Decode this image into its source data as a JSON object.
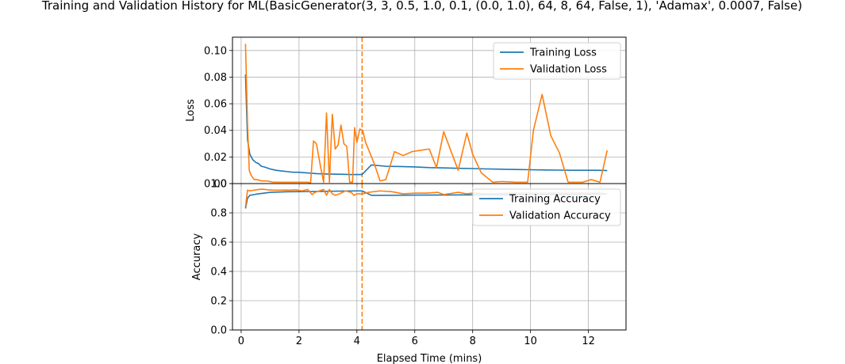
{
  "title": "Training and Validation History for ML(BasicGenerator(3, 3, 0.5, 1.0, 0.1, (0.0, 1.0), 64, 8, 64, False, 1), 'Adamax', 0.0007, False)",
  "colors": {
    "training": "#1f77b4",
    "validation": "#ff7f0e",
    "grid": "#b0b0b0"
  },
  "chart_data": [
    {
      "type": "line",
      "ylabel": "Loss",
      "xlim": [
        -0.3,
        13.3
      ],
      "ylim": [
        0,
        0.11
      ],
      "xticks": [
        0,
        2,
        4,
        6,
        8,
        10,
        12
      ],
      "yticks": [
        0,
        0.02,
        0.04,
        0.06,
        0.08,
        0.1
      ],
      "ytick_labels": [
        "0.00",
        "0.02",
        "0.04",
        "0.06",
        "0.08",
        "0.10"
      ],
      "grid": true,
      "legend": "top-right",
      "vline": {
        "x": 4.18,
        "style": "dashed",
        "color": "#ff7f0e"
      },
      "series": [
        {
          "name": "Training Loss",
          "color": "#1f77b4",
          "x": [
            0.15,
            0.22,
            0.3,
            0.4,
            0.5,
            0.6,
            0.7,
            0.8,
            1.0,
            1.2,
            1.4,
            1.6,
            1.8,
            2.0,
            2.3,
            2.6,
            3.0,
            3.4,
            3.8,
            4.18,
            4.5,
            5.0,
            5.5,
            6.0,
            6.5,
            7.0,
            7.5,
            8.0,
            8.5,
            9.0,
            9.5,
            10.0,
            10.5,
            11.0,
            11.5,
            12.0,
            12.3,
            12.65
          ],
          "y": [
            0.082,
            0.033,
            0.022,
            0.018,
            0.016,
            0.015,
            0.013,
            0.0125,
            0.011,
            0.01,
            0.0095,
            0.009,
            0.0085,
            0.0085,
            0.008,
            0.0075,
            0.0072,
            0.007,
            0.0068,
            0.0068,
            0.014,
            0.013,
            0.0128,
            0.0125,
            0.012,
            0.0118,
            0.0115,
            0.0113,
            0.011,
            0.0108,
            0.0106,
            0.0104,
            0.0102,
            0.0101,
            0.01,
            0.01,
            0.01,
            0.0098
          ]
        },
        {
          "name": "Validation Loss",
          "color": "#ff7f0e",
          "x": [
            0.15,
            0.22,
            0.28,
            0.35,
            0.45,
            0.55,
            0.7,
            0.9,
            1.1,
            1.3,
            1.5,
            1.7,
            1.9,
            2.1,
            2.3,
            2.4,
            2.5,
            2.6,
            2.75,
            2.85,
            2.95,
            3.05,
            3.15,
            3.25,
            3.35,
            3.45,
            3.55,
            3.65,
            3.75,
            3.85,
            3.92,
            4.0,
            4.1,
            4.2,
            4.3,
            4.6,
            4.8,
            5.0,
            5.3,
            5.6,
            5.9,
            6.2,
            6.5,
            6.75,
            7.0,
            7.5,
            7.8,
            8.0,
            8.3,
            8.7,
            9.0,
            9.5,
            9.9,
            10.1,
            10.4,
            10.7,
            11.0,
            11.3,
            11.6,
            11.8,
            12.1,
            12.4,
            12.65
          ],
          "y": [
            0.105,
            0.045,
            0.01,
            0.006,
            0.003,
            0.003,
            0.002,
            0.002,
            0.001,
            0.001,
            0.001,
            0.001,
            0.001,
            0.001,
            0.001,
            0.0005,
            0.032,
            0.03,
            0.012,
            0.001,
            0.053,
            0.001,
            0.052,
            0.026,
            0.029,
            0.044,
            0.03,
            0.028,
            0.001,
            0.001,
            0.042,
            0.031,
            0.041,
            0.04,
            0.031,
            0.015,
            0.002,
            0.003,
            0.024,
            0.021,
            0.024,
            0.025,
            0.026,
            0.012,
            0.039,
            0.01,
            0.038,
            0.022,
            0.008,
            0.001,
            0.0015,
            0.001,
            0.001,
            0.04,
            0.067,
            0.036,
            0.023,
            0.001,
            0.001,
            0.001,
            0.003,
            0.001,
            0.025
          ]
        }
      ]
    },
    {
      "type": "line",
      "xlabel": "Elapsed Time (mins)",
      "ylabel": "Accuracy",
      "xlim": [
        -0.3,
        13.3
      ],
      "ylim": [
        0,
        1.0
      ],
      "xticks": [
        0,
        2,
        4,
        6,
        8,
        10,
        12
      ],
      "yticks": [
        0,
        0.2,
        0.4,
        0.6,
        0.8,
        1.0
      ],
      "ytick_labels": [
        "0.0",
        "0.2",
        "0.4",
        "0.6",
        "0.8",
        "1.0"
      ],
      "grid": true,
      "legend": "top-right",
      "vline": {
        "x": 4.18,
        "style": "dashed",
        "color": "#ff7f0e"
      },
      "series": [
        {
          "name": "Training Accuracy",
          "color": "#1f77b4",
          "x": [
            0.15,
            0.22,
            0.3,
            0.45,
            0.6,
            0.8,
            1.0,
            1.3,
            1.6,
            2.0,
            2.4,
            2.8,
            3.2,
            3.6,
            4.0,
            4.18,
            4.5,
            5.0,
            6.0,
            7.0,
            8.0,
            9.0,
            10.0,
            11.0,
            12.0,
            12.65
          ],
          "y": [
            0.83,
            0.9,
            0.92,
            0.925,
            0.93,
            0.935,
            0.94,
            0.942,
            0.944,
            0.945,
            0.946,
            0.947,
            0.948,
            0.949,
            0.95,
            0.95,
            0.92,
            0.92,
            0.921,
            0.922,
            0.923,
            0.924,
            0.925,
            0.926,
            0.927,
            0.928
          ]
        },
        {
          "name": "Validation Accuracy",
          "color": "#ff7f0e",
          "x": [
            0.15,
            0.22,
            0.3,
            0.45,
            0.6,
            0.75,
            0.9,
            1.1,
            1.3,
            1.5,
            1.7,
            1.9,
            2.1,
            2.3,
            2.45,
            2.55,
            2.7,
            2.85,
            2.95,
            3.05,
            3.15,
            3.25,
            3.4,
            3.6,
            3.8,
            3.9,
            4.0,
            4.2,
            4.4,
            4.8,
            5.2,
            5.6,
            6.0,
            6.4,
            6.8,
            7.0,
            7.5,
            7.8,
            8.0,
            8.4,
            8.8,
            9.2,
            9.6,
            10.0,
            10.4,
            10.8,
            11.2,
            11.6,
            12.0,
            12.4,
            12.65
          ],
          "y": [
            0.84,
            0.955,
            0.95,
            0.955,
            0.96,
            0.962,
            0.958,
            0.955,
            0.955,
            0.956,
            0.955,
            0.957,
            0.95,
            0.96,
            0.925,
            0.94,
            0.95,
            0.96,
            0.92,
            0.96,
            0.93,
            0.92,
            0.93,
            0.95,
            0.94,
            0.92,
            0.93,
            0.93,
            0.94,
            0.95,
            0.945,
            0.93,
            0.935,
            0.935,
            0.94,
            0.925,
            0.94,
            0.93,
            0.935,
            0.93,
            0.93,
            0.935,
            0.935,
            0.935,
            0.935,
            0.935,
            0.935,
            0.935,
            0.935,
            0.935,
            0.93
          ]
        }
      ]
    }
  ]
}
